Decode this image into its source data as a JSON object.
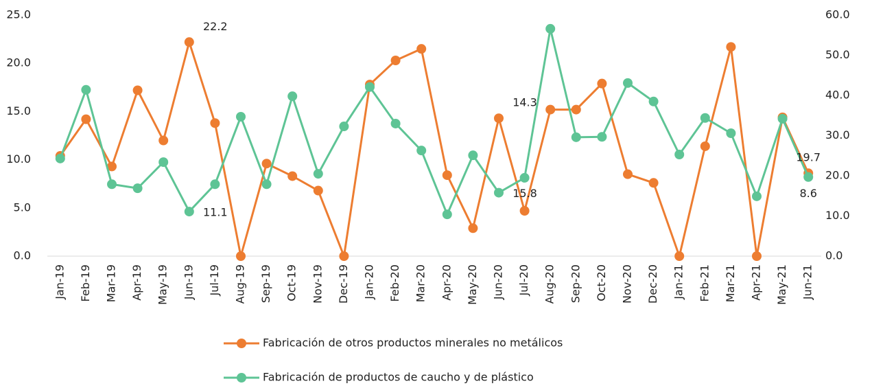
{
  "chart_data": {
    "type": "line",
    "categories": [
      "Jan-19",
      "Feb-19",
      "Mar-19",
      "Apr-19",
      "May-19",
      "Jun-19",
      "Jul-19",
      "Aug-19",
      "Sep-19",
      "Oct-19",
      "Nov-19",
      "Dec-19",
      "Jan-20",
      "Feb-20",
      "Mar-20",
      "Apr-20",
      "May-20",
      "Jun-20",
      "Jul-20",
      "Aug-20",
      "Sep-20",
      "Oct-20",
      "Nov-20",
      "Dec-20",
      "Jan-21",
      "Feb-21",
      "Mar-21",
      "Apr-21",
      "May-21",
      "Jun-21"
    ],
    "series": [
      {
        "name": "Fabricación de otros productos minerales no metálicos",
        "color": "#ED7D31",
        "axis": "y",
        "values": [
          10.4,
          14.2,
          9.3,
          17.2,
          12.0,
          22.2,
          13.8,
          0,
          9.6,
          8.3,
          6.8,
          0,
          17.8,
          20.3,
          21.5,
          8.4,
          2.9,
          14.3,
          4.7,
          15.2,
          15.2,
          17.9,
          8.5,
          7.6,
          0,
          11.4,
          21.7,
          0,
          14.4,
          8.6
        ],
        "value_labels": [
          null,
          null,
          null,
          null,
          null,
          "22.2",
          null,
          null,
          null,
          null,
          null,
          null,
          null,
          null,
          null,
          null,
          null,
          "14.3",
          null,
          null,
          null,
          null,
          null,
          null,
          null,
          null,
          null,
          null,
          null,
          "8.6"
        ]
      },
      {
        "name": "Fabricación de productos de caucho y de plástico",
        "color": "#5EC495",
        "axis": "y2",
        "values": [
          24.3,
          41.4,
          17.9,
          16.9,
          23.4,
          11.1,
          17.9,
          34.7,
          17.9,
          39.8,
          20.5,
          32.3,
          42.1,
          33.0,
          26.3,
          10.4,
          25.1,
          15.8,
          19.5,
          56.6,
          29.6,
          29.7,
          43.1,
          38.5,
          25.3,
          34.4,
          30.6,
          14.9,
          34.2,
          19.7
        ],
        "value_labels": [
          null,
          null,
          null,
          null,
          null,
          "11.1",
          null,
          null,
          null,
          null,
          null,
          null,
          null,
          null,
          null,
          null,
          null,
          "15.8",
          null,
          null,
          null,
          null,
          null,
          null,
          null,
          null,
          null,
          null,
          null,
          "19.7"
        ]
      }
    ],
    "ylim": [
      0,
      25
    ],
    "yticks": [
      {
        "value": 0,
        "label": "0.0"
      },
      {
        "value": 5,
        "label": "5.0"
      },
      {
        "value": 10,
        "label": "10.0"
      },
      {
        "value": 15,
        "label": "15.0"
      },
      {
        "value": 20,
        "label": "20.0"
      },
      {
        "value": 25,
        "label": "25.0"
      }
    ],
    "y2lim": [
      0,
      60
    ],
    "y2ticks": [
      {
        "value": 0,
        "label": "0.0"
      },
      {
        "value": 10,
        "label": "10.0"
      },
      {
        "value": 20,
        "label": "20.0"
      },
      {
        "value": 30,
        "label": "30.0"
      },
      {
        "value": 40,
        "label": "40.0"
      },
      {
        "value": 50,
        "label": "50.0"
      },
      {
        "value": 60,
        "label": "60.0"
      }
    ],
    "legend": "bottom"
  }
}
